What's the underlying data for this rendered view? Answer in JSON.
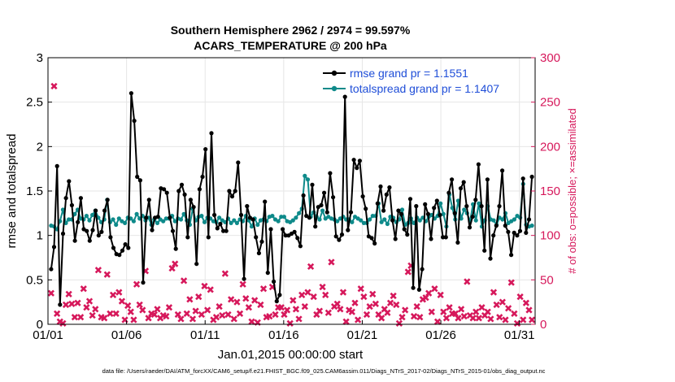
{
  "chart_data": {
    "type": "line",
    "title_line1": "Southern Hemisphere 2962 / 2974 = 99.597%",
    "title_line2": "ACARS_TEMPERATURE @ 200 hPa",
    "xlabel": "Jan.01,2015 00:00:00 start",
    "ylabel_left": "rmse and totalspread",
    "ylabel_right": "# of obs: o=possible; ×=assimilated",
    "xlim": [
      1,
      32
    ],
    "ylim_left": [
      0,
      3
    ],
    "ylim_right": [
      0,
      300
    ],
    "x_ticks": [
      1,
      6,
      11,
      16,
      21,
      26,
      31
    ],
    "x_tick_labels": [
      "01/01",
      "01/06",
      "01/11",
      "01/16",
      "01/21",
      "01/26",
      "01/31"
    ],
    "y_ticks_left": [
      0,
      0.5,
      1,
      1.5,
      2,
      2.5,
      3
    ],
    "y_tick_labels_left": [
      "0",
      "0.5",
      "1",
      "1.5",
      "2",
      "2.5",
      "3"
    ],
    "y_ticks_right": [
      0,
      50,
      100,
      150,
      200,
      250,
      300
    ],
    "y_tick_labels_right": [
      "0",
      "50",
      "100",
      "150",
      "200",
      "250",
      "300"
    ],
    "colors": {
      "rmse": "#000000",
      "spread": "#0e8a8a",
      "obs": "#d6185b",
      "legend_text": "#1f4ed8"
    },
    "series": [
      {
        "name": "rmse grand pr = 1.1551",
        "values": [
          0.62,
          0.87,
          1.78,
          0.22,
          1.02,
          1.42,
          1.61,
          1.34,
          0.94,
          1.15,
          1.42,
          1.07,
          1.05,
          0.94,
          1.06,
          1.28,
          1.0,
          1.04,
          1.28,
          1.4,
          0.98,
          0.86,
          0.79,
          0.78,
          0.83,
          0.9,
          0.86,
          2.6,
          2.29,
          1.66,
          1.62,
          0.47,
          1.2,
          1.4,
          1.06,
          1.2,
          1.21,
          1.53,
          1.52,
          1.48,
          1.2,
          1.05,
          0.85,
          1.5,
          1.57,
          1.46,
          0.98,
          1.4,
          1.32,
          0.68,
          1.52,
          1.66,
          1.97,
          0.98,
          2.15,
          1.23,
          1.08,
          1.13,
          1.05,
          1.05,
          1.5,
          1.44,
          1.5,
          1.82,
          1.23,
          0.51,
          1.33,
          1.2,
          1.18,
          0.98,
          0.8,
          0.93,
          1.38,
          0.58,
          1.07,
          0.48,
          0.26,
          0.33,
          1.07,
          1.0,
          1.0,
          1.02,
          1.04,
          0.97,
          0.88,
          1.45,
          1.22,
          1.2,
          1.57,
          1.1,
          1.32,
          1.34,
          1.48,
          1.26,
          1.7,
          1.43,
          0.99,
          0.95,
          1.01,
          2.56,
          1.06,
          1.26,
          1.85,
          1.76,
          1.84,
          1.44,
          1.3,
          0.99,
          0.97,
          0.91,
          1.36,
          1.55,
          1.28,
          1.46,
          1.54,
          1.17,
          0.96,
          1.28,
          1.24,
          1.07,
          1.01,
          1.41,
          0.41,
          1.33,
          0.39,
          0.62,
          1.35,
          1.24,
          0.96,
          1.31,
          1.39,
          1.23,
          0.98,
          0.98,
          1.48,
          1.63,
          1.25,
          0.92,
          1.53,
          1.6,
          1.33,
          1.09,
          1.21,
          1.4,
          1.8,
          1.33,
          0.83,
          1.63,
          0.74,
          1.0,
          1.11,
          1.33,
          1.73,
          1.11,
          1.04,
          0.78,
          1.03,
          1.0,
          1.05,
          1.64,
          1.03,
          1.18,
          1.66
        ]
      },
      {
        "name": "totalspread grand pr = 1.1407",
        "values": [
          1.11,
          1.1,
          1.07,
          1.16,
          1.29,
          1.14,
          1.18,
          1.18,
          1.24,
          1.29,
          1.19,
          1.18,
          1.22,
          1.17,
          1.23,
          1.28,
          1.2,
          1.15,
          1.18,
          1.4,
          1.15,
          1.18,
          1.12,
          1.19,
          1.16,
          1.14,
          1.2,
          1.19,
          1.16,
          1.24,
          1.19,
          1.22,
          1.17,
          1.2,
          1.12,
          1.18,
          1.14,
          1.18,
          1.16,
          1.19,
          1.19,
          1.22,
          1.16,
          1.19,
          1.18,
          1.24,
          1.17,
          1.12,
          1.3,
          1.17,
          1.21,
          1.22,
          1.15,
          1.2,
          1.19,
          1.16,
          1.15,
          1.2,
          1.17,
          1.15,
          1.19,
          1.14,
          1.17,
          1.14,
          1.18,
          1.16,
          1.22,
          1.17,
          1.1,
          1.19,
          1.12,
          1.17,
          1.18,
          1.16,
          1.21,
          1.22,
          1.18,
          1.16,
          1.21,
          1.21,
          1.16,
          1.15,
          1.17,
          1.2,
          1.25,
          1.3,
          1.67,
          1.63,
          1.21,
          1.26,
          1.21,
          1.18,
          1.28,
          1.19,
          1.21,
          1.19,
          1.18,
          1.16,
          1.19,
          1.21,
          1.18,
          1.18,
          1.15,
          1.21,
          1.19,
          1.17,
          1.14,
          1.14,
          1.18,
          1.22,
          1.22,
          1.36,
          1.15,
          1.18,
          1.13,
          1.21,
          1.2,
          1.15,
          1.18,
          1.29,
          1.12,
          1.14,
          1.19,
          1.14,
          1.2,
          1.17,
          1.2,
          1.16,
          1.21,
          1.23,
          1.19,
          1.22,
          1.36,
          1.24,
          1.1,
          1.46,
          1.31,
          1.18,
          1.39,
          1.19,
          1.29,
          1.25,
          1.16,
          1.35,
          1.17,
          1.36,
          1.1,
          1.17,
          1.33,
          1.18,
          1.17,
          1.12,
          1.2,
          1.18,
          1.25,
          1.14,
          1.16,
          1.18,
          1.22,
          1.2,
          1.58,
          1.12,
          1.1,
          1.11
        ]
      }
    ],
    "obs_counts": [
      35,
      268,
      12,
      3,
      1,
      22,
      34,
      23,
      8,
      24,
      8,
      40,
      19,
      26,
      10,
      17,
      61,
      8,
      7,
      56,
      12,
      33,
      12,
      36,
      26,
      5,
      21,
      14,
      5,
      45,
      22,
      16,
      60,
      7,
      12,
      11,
      17,
      7,
      10,
      9,
      19,
      63,
      68,
      11,
      6,
      49,
      12,
      28,
      6,
      15,
      31,
      11,
      43,
      16,
      39,
      5,
      8,
      20,
      10,
      57,
      11,
      28,
      6,
      25,
      12,
      45,
      29,
      19,
      3,
      27,
      2,
      22,
      40,
      8,
      9,
      42,
      11,
      19,
      19,
      11,
      16,
      1,
      27,
      17,
      6,
      33,
      20,
      36,
      65,
      31,
      11,
      15,
      42,
      33,
      13,
      70,
      20,
      23,
      17,
      36,
      3,
      16,
      14,
      24,
      5,
      40,
      31,
      11,
      20,
      34,
      23,
      11,
      7,
      17,
      13,
      24,
      32,
      22,
      1,
      8,
      16,
      59,
      66,
      9,
      20,
      8,
      28,
      30,
      35,
      14,
      40,
      3,
      33,
      14,
      7,
      19,
      12,
      12,
      7,
      17,
      9,
      48,
      10,
      7,
      14,
      7,
      19,
      10,
      14,
      6,
      36,
      22,
      8,
      25,
      5,
      18,
      47,
      12,
      1,
      31,
      5,
      24,
      16,
      5
    ]
  },
  "footer": "data file: /Users/raeder/DAI/ATM_forcXX/CAM6_setup/f.e21.FHIST_BGC.f09_025.CAM6assim.011/Diags_NTrS_2017-02/Diags_NTrS_2015-01/obs_diag_output.nc"
}
